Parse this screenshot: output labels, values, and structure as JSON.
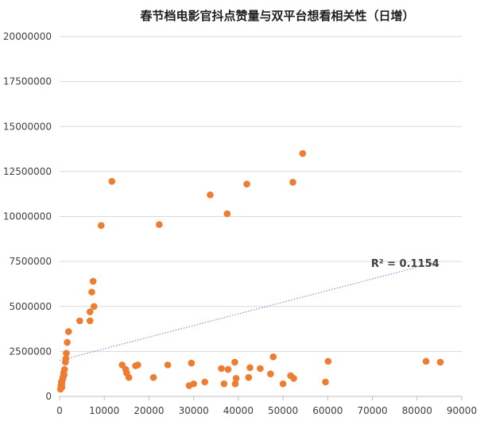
{
  "chart_data": {
    "type": "scatter",
    "title": "春节档电影官抖点赞量与双平台想看相关性（日增）",
    "xlabel": "",
    "ylabel": "",
    "xlim": [
      0,
      90000
    ],
    "ylim": [
      0,
      20000000
    ],
    "x_ticks": [
      0,
      10000,
      20000,
      30000,
      40000,
      50000,
      60000,
      70000,
      80000,
      90000
    ],
    "y_ticks": [
      0,
      2500000,
      5000000,
      7500000,
      10000000,
      12500000,
      15000000,
      17500000,
      20000000
    ],
    "x_tick_labels": [
      "0",
      "10000",
      "20000",
      "30000",
      "40000",
      "50000",
      "60000",
      "70000",
      "80000",
      "90000"
    ],
    "y_tick_labels": [
      "0",
      "2500000",
      "5000000",
      "7500000",
      "10000000",
      "12500000",
      "15000000",
      "17500000",
      "20000000"
    ],
    "grid": "horizontal",
    "point_color": "#ED7D31",
    "trendline": {
      "type": "linear",
      "x": [
        0,
        85000
      ],
      "y": [
        2000000,
        7500000
      ],
      "color": "#4F6BD8",
      "label": "R² = 0.1154"
    },
    "series": [
      {
        "points": [
          [
            200,
            400000
          ],
          [
            300,
            600000
          ],
          [
            400,
            800000
          ],
          [
            500,
            500000
          ],
          [
            500,
            700000
          ],
          [
            600,
            900000
          ],
          [
            700,
            1000000
          ],
          [
            800,
            1100000
          ],
          [
            900,
            1300000
          ],
          [
            1000,
            1200000
          ],
          [
            1100,
            1500000
          ],
          [
            1300,
            1900000
          ],
          [
            1400,
            2100000
          ],
          [
            1500,
            2400000
          ],
          [
            1700,
            3000000
          ],
          [
            2000,
            3600000
          ],
          [
            4500,
            4200000
          ],
          [
            6800,
            4700000
          ],
          [
            6800,
            4200000
          ],
          [
            7200,
            5800000
          ],
          [
            7500,
            6400000
          ],
          [
            7700,
            5000000
          ],
          [
            9300,
            9500000
          ],
          [
            11700,
            11950000
          ],
          [
            14000,
            1750000
          ],
          [
            14800,
            1500000
          ],
          [
            15000,
            1300000
          ],
          [
            15500,
            1050000
          ],
          [
            17000,
            1700000
          ],
          [
            17500,
            1750000
          ],
          [
            21000,
            1050000
          ],
          [
            22300,
            9550000
          ],
          [
            24200,
            1750000
          ],
          [
            29000,
            600000
          ],
          [
            29500,
            1850000
          ],
          [
            30000,
            700000
          ],
          [
            32500,
            800000
          ],
          [
            33700,
            11200000
          ],
          [
            36200,
            1550000
          ],
          [
            36800,
            700000
          ],
          [
            37500,
            10150000
          ],
          [
            37700,
            1500000
          ],
          [
            39200,
            1900000
          ],
          [
            39300,
            700000
          ],
          [
            39500,
            1000000
          ],
          [
            41900,
            11800000
          ],
          [
            42300,
            1050000
          ],
          [
            42600,
            1600000
          ],
          [
            44900,
            1550000
          ],
          [
            47200,
            1250000
          ],
          [
            47800,
            2200000
          ],
          [
            50000,
            700000
          ],
          [
            51700,
            1150000
          ],
          [
            52200,
            11900000
          ],
          [
            52400,
            1000000
          ],
          [
            54400,
            13500000
          ],
          [
            59500,
            800000
          ],
          [
            60100,
            1950000
          ],
          [
            82000,
            1950000
          ],
          [
            85200,
            1900000
          ]
        ]
      }
    ]
  }
}
